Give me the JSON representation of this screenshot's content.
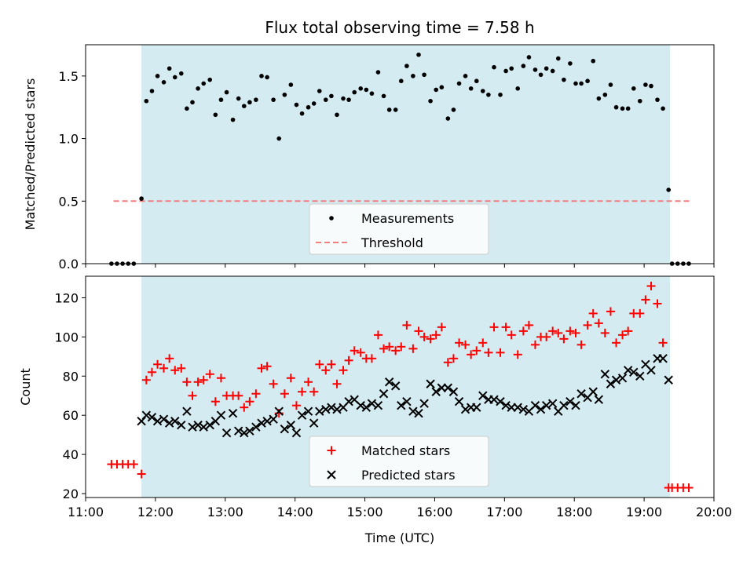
{
  "chart_data": [
    {
      "type": "scatter",
      "title": "Flux total observing time = 7.58 h",
      "ylabel": "Matched/Predicted stars",
      "xlabel": "",
      "xlim": [
        11.0,
        20.0
      ],
      "ylim": [
        0.0,
        1.75
      ],
      "yticks": [
        "0.0",
        "0.5",
        "1.0",
        "1.5"
      ],
      "shaded_interval": [
        11.8,
        19.37
      ],
      "shade_color": "#d4ebf1",
      "legend_position": "lower-center",
      "series": [
        {
          "name": "Measurements",
          "marker": "dot",
          "color": "#000000",
          "x": [
            11.37,
            11.45,
            11.53,
            11.61,
            11.69,
            11.8,
            11.87,
            11.95,
            12.03,
            12.12,
            12.2,
            12.28,
            12.37,
            12.45,
            12.53,
            12.61,
            12.69,
            12.78,
            12.86,
            12.94,
            13.02,
            13.11,
            13.19,
            13.27,
            13.35,
            13.44,
            13.52,
            13.6,
            13.69,
            13.77,
            13.85,
            13.94,
            14.02,
            14.1,
            14.19,
            14.27,
            14.35,
            14.44,
            14.52,
            14.6,
            14.69,
            14.77,
            14.85,
            14.94,
            15.02,
            15.1,
            15.19,
            15.27,
            15.35,
            15.44,
            15.52,
            15.6,
            15.69,
            15.77,
            15.85,
            15.94,
            16.02,
            16.1,
            16.19,
            16.27,
            16.35,
            16.44,
            16.52,
            16.6,
            16.69,
            16.77,
            16.85,
            16.94,
            17.02,
            17.1,
            17.19,
            17.27,
            17.35,
            17.44,
            17.52,
            17.6,
            17.69,
            17.77,
            17.85,
            17.94,
            18.02,
            18.1,
            18.19,
            18.27,
            18.35,
            18.44,
            18.52,
            18.6,
            18.69,
            18.77,
            18.85,
            18.94,
            19.02,
            19.1,
            19.19,
            19.27,
            19.35,
            19.4,
            19.48,
            19.56,
            19.64
          ],
          "y": [
            0.0,
            0.0,
            0.0,
            0.0,
            0.0,
            0.52,
            1.3,
            1.38,
            1.5,
            1.45,
            1.56,
            1.49,
            1.52,
            1.24,
            1.29,
            1.4,
            1.44,
            1.47,
            1.19,
            1.31,
            1.37,
            1.15,
            1.32,
            1.26,
            1.29,
            1.31,
            1.5,
            1.49,
            1.31,
            1.0,
            1.35,
            1.43,
            1.27,
            1.2,
            1.25,
            1.28,
            1.38,
            1.31,
            1.34,
            1.19,
            1.32,
            1.31,
            1.37,
            1.4,
            1.39,
            1.36,
            1.53,
            1.34,
            1.23,
            1.23,
            1.46,
            1.58,
            1.5,
            1.67,
            1.51,
            1.3,
            1.39,
            1.41,
            1.16,
            1.23,
            1.44,
            1.5,
            1.4,
            1.46,
            1.38,
            1.35,
            1.57,
            1.35,
            1.54,
            1.56,
            1.4,
            1.58,
            1.65,
            1.55,
            1.51,
            1.56,
            1.54,
            1.64,
            1.47,
            1.6,
            1.44,
            1.44,
            1.46,
            1.62,
            1.32,
            1.35,
            1.43,
            1.25,
            1.24,
            1.24,
            1.4,
            1.3,
            1.43,
            1.42,
            1.31,
            1.24,
            0.59,
            0.0,
            0.0,
            0.0,
            0.0
          ]
        },
        {
          "name": "Threshold",
          "marker": "dashed-line",
          "color": "#f08080",
          "x": [
            11.4,
            19.65
          ],
          "y": [
            0.5,
            0.5
          ]
        }
      ]
    },
    {
      "type": "scatter",
      "title": "",
      "ylabel": "Count",
      "xlabel": "Time (UTC)",
      "xlim": [
        11.0,
        20.0
      ],
      "ylim": [
        18,
        131
      ],
      "xticks": [
        "11:00",
        "12:00",
        "13:00",
        "14:00",
        "15:00",
        "16:00",
        "17:00",
        "18:00",
        "19:00",
        "20:00"
      ],
      "yticks": [
        "20",
        "40",
        "60",
        "80",
        "100",
        "120"
      ],
      "shaded_interval": [
        11.8,
        19.37
      ],
      "shade_color": "#d4ebf1",
      "legend_position": "lower-center",
      "series": [
        {
          "name": "Matched stars",
          "marker": "plus",
          "color": "#ff0000",
          "x": [
            11.37,
            11.45,
            11.53,
            11.61,
            11.69,
            11.8,
            11.87,
            11.95,
            12.03,
            12.12,
            12.2,
            12.28,
            12.37,
            12.45,
            12.53,
            12.61,
            12.69,
            12.78,
            12.86,
            12.94,
            13.02,
            13.11,
            13.19,
            13.27,
            13.35,
            13.44,
            13.52,
            13.6,
            13.69,
            13.77,
            13.85,
            13.94,
            14.02,
            14.1,
            14.19,
            14.27,
            14.35,
            14.44,
            14.52,
            14.6,
            14.69,
            14.77,
            14.85,
            14.94,
            15.02,
            15.1,
            15.19,
            15.27,
            15.35,
            15.44,
            15.52,
            15.6,
            15.69,
            15.77,
            15.85,
            15.94,
            16.02,
            16.1,
            16.19,
            16.27,
            16.35,
            16.44,
            16.52,
            16.6,
            16.69,
            16.77,
            16.85,
            16.94,
            17.02,
            17.1,
            17.19,
            17.27,
            17.35,
            17.44,
            17.52,
            17.6,
            17.69,
            17.77,
            17.85,
            17.94,
            18.02,
            18.1,
            18.19,
            18.27,
            18.35,
            18.44,
            18.52,
            18.6,
            18.69,
            18.77,
            18.85,
            18.94,
            19.02,
            19.1,
            19.19,
            19.27,
            19.35,
            19.4,
            19.48,
            19.56,
            19.64
          ],
          "y": [
            35,
            35,
            35,
            35,
            35,
            30,
            78,
            82,
            86,
            84,
            89,
            83,
            84,
            77,
            70,
            77,
            78,
            81,
            67,
            79,
            70,
            70,
            70,
            64,
            67,
            71,
            84,
            85,
            76,
            61,
            71,
            79,
            65,
            72,
            77,
            72,
            86,
            83,
            86,
            76,
            83,
            88,
            93,
            92,
            89,
            89,
            101,
            94,
            95,
            93,
            95,
            106,
            94,
            103,
            100,
            99,
            101,
            105,
            87,
            89,
            97,
            96,
            91,
            93,
            97,
            92,
            105,
            92,
            105,
            101,
            91,
            103,
            106,
            96,
            100,
            100,
            103,
            102,
            99,
            103,
            102,
            96,
            106,
            112,
            107,
            102,
            113,
            97,
            101,
            103,
            112,
            112,
            119,
            126,
            117,
            97,
            23,
            23,
            23,
            23,
            23
          ]
        },
        {
          "name": "Predicted stars",
          "marker": "x",
          "color": "#000000",
          "x": [
            11.8,
            11.87,
            11.95,
            12.03,
            12.12,
            12.2,
            12.28,
            12.37,
            12.45,
            12.53,
            12.61,
            12.69,
            12.78,
            12.86,
            12.94,
            13.02,
            13.11,
            13.19,
            13.27,
            13.35,
            13.44,
            13.52,
            13.6,
            13.69,
            13.77,
            13.85,
            13.94,
            14.02,
            14.1,
            14.19,
            14.27,
            14.35,
            14.44,
            14.52,
            14.6,
            14.69,
            14.77,
            14.85,
            14.94,
            15.02,
            15.1,
            15.19,
            15.27,
            15.35,
            15.44,
            15.52,
            15.6,
            15.69,
            15.77,
            15.85,
            15.94,
            16.02,
            16.1,
            16.19,
            16.27,
            16.35,
            16.44,
            16.52,
            16.6,
            16.69,
            16.77,
            16.85,
            16.94,
            17.02,
            17.1,
            17.19,
            17.27,
            17.35,
            17.44,
            17.52,
            17.6,
            17.69,
            17.77,
            17.85,
            17.94,
            18.02,
            18.1,
            18.19,
            18.27,
            18.35,
            18.44,
            18.52,
            18.6,
            18.69,
            18.77,
            18.85,
            18.94,
            19.02,
            19.1,
            19.19,
            19.27,
            19.35
          ],
          "y": [
            57,
            60,
            59,
            57,
            58,
            56,
            57,
            55,
            62,
            54,
            55,
            54,
            55,
            57,
            60,
            51,
            61,
            52,
            51,
            52,
            54,
            56,
            57,
            58,
            62,
            53,
            55,
            51,
            60,
            62,
            56,
            62,
            63,
            64,
            63,
            64,
            67,
            68,
            65,
            64,
            66,
            65,
            71,
            77,
            75,
            65,
            67,
            62,
            61,
            66,
            76,
            72,
            74,
            74,
            72,
            67,
            63,
            64,
            64,
            70,
            68,
            68,
            67,
            65,
            64,
            64,
            63,
            62,
            65,
            63,
            65,
            66,
            62,
            65,
            67,
            65,
            71,
            69,
            72,
            68,
            81,
            76,
            78,
            79,
            83,
            82,
            80,
            86,
            83,
            89,
            89,
            78
          ]
        }
      ]
    }
  ]
}
